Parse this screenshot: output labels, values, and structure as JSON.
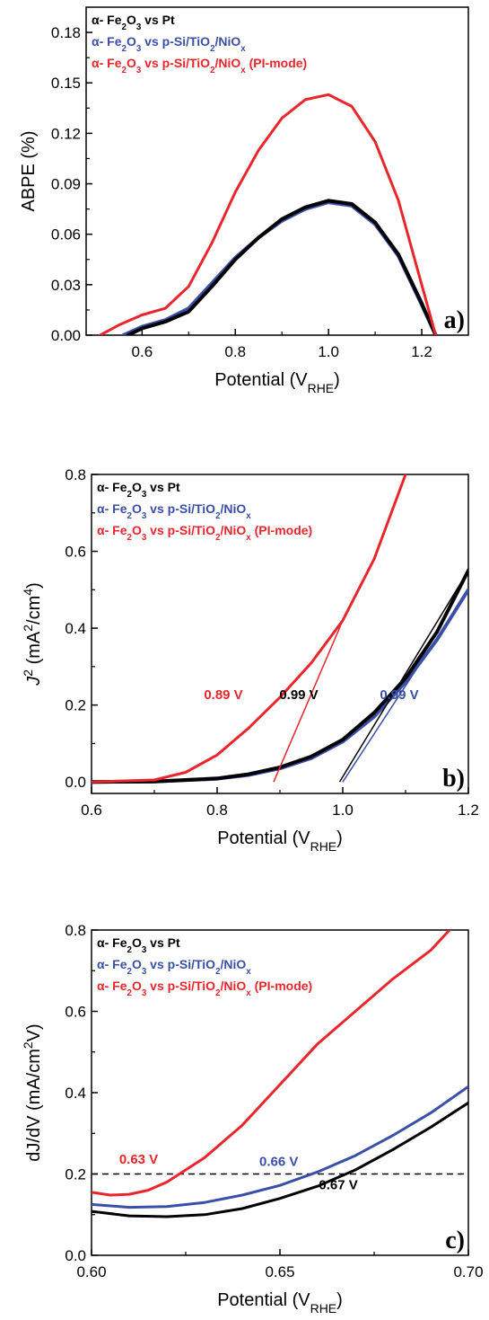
{
  "colors": {
    "black": "#000000",
    "blue": "#3a4fa8",
    "red": "#e8262c"
  },
  "chart_data": [
    {
      "type": "line",
      "panel_label": "a)",
      "xlabel": "Potential (V",
      "xlabel_sub": "RHE",
      "xlabel_close": ")",
      "ylabel": "ABPE (%)",
      "xlim": [
        0.48,
        1.3
      ],
      "ylim": [
        0,
        0.195
      ],
      "xticks": [
        0.6,
        0.8,
        1.0,
        1.2
      ],
      "xtick_labels": [
        "0.6",
        "0.8",
        "1.0",
        "1.2"
      ],
      "yticks": [
        0,
        0.03,
        0.06,
        0.09,
        0.12,
        0.15,
        0.18
      ],
      "ytick_labels": [
        "0.00",
        "0.03",
        "0.06",
        "0.09",
        "0.12",
        "0.15",
        "0.18"
      ],
      "legend": [
        {
          "prefix": "α- Fe",
          "s1": "2",
          "mid": "O",
          "s2": "3",
          "suffix": " vs Pt",
          "color": "#000000"
        },
        {
          "prefix": "α- Fe",
          "s1": "2",
          "mid": "O",
          "s2": "3",
          "suffix": " vs p-Si/TiO",
          "s3": "2",
          "suffix2": "/NiO",
          "s4": "x",
          "color": "#3a4fa8"
        },
        {
          "prefix": "α- Fe",
          "s1": "2",
          "mid": "O",
          "s2": "3",
          "suffix": " vs p-Si/TiO",
          "s3": "2",
          "suffix2": "/NiO",
          "s4": "x",
          "suffix3": " (PI-mode)",
          "color": "#e8262c"
        }
      ],
      "series": [
        {
          "color": "#3a4fa8",
          "width": 4,
          "x": [
            0.56,
            0.6,
            0.65,
            0.7,
            0.75,
            0.8,
            0.85,
            0.9,
            0.95,
            1.0,
            1.05,
            1.1,
            1.15,
            1.2,
            1.23
          ],
          "y": [
            0,
            0.005,
            0.009,
            0.016,
            0.031,
            0.046,
            0.058,
            0.068,
            0.075,
            0.079,
            0.077,
            0.066,
            0.047,
            0.018,
            0
          ]
        },
        {
          "color": "#000000",
          "width": 4,
          "x": [
            0.57,
            0.6,
            0.65,
            0.7,
            0.75,
            0.8,
            0.85,
            0.9,
            0.95,
            1.0,
            1.05,
            1.1,
            1.15,
            1.2,
            1.23
          ],
          "y": [
            0,
            0.004,
            0.008,
            0.014,
            0.029,
            0.045,
            0.058,
            0.069,
            0.076,
            0.08,
            0.078,
            0.067,
            0.048,
            0.019,
            0
          ]
        },
        {
          "color": "#e8262c",
          "width": 3,
          "x": [
            0.51,
            0.55,
            0.6,
            0.65,
            0.7,
            0.75,
            0.8,
            0.85,
            0.9,
            0.95,
            1.0,
            1.05,
            1.1,
            1.15,
            1.2,
            1.23
          ],
          "y": [
            0,
            0.006,
            0.012,
            0.016,
            0.029,
            0.055,
            0.085,
            0.11,
            0.129,
            0.14,
            0.143,
            0.136,
            0.115,
            0.08,
            0.03,
            0
          ]
        }
      ]
    },
    {
      "type": "line",
      "panel_label": "b)",
      "xlabel": "Potential (V",
      "xlabel_sub": "RHE",
      "xlabel_close": ")",
      "ylabel_j": "J",
      "ylabel_exp": "2",
      "ylabel_open": " (mA",
      "ylabel_exp2": "2",
      "ylabel_mid": "/cm",
      "ylabel_exp3": "4",
      "ylabel_close": ")",
      "xlim": [
        0.6,
        1.2
      ],
      "ylim": [
        -0.03,
        0.8
      ],
      "xticks": [
        0.6,
        0.8,
        1.0,
        1.2
      ],
      "xtick_labels": [
        "0.6",
        "0.8",
        "1.0",
        "1.2"
      ],
      "yticks": [
        0,
        0.2,
        0.4,
        0.6,
        0.8
      ],
      "ytick_labels": [
        "0.0",
        "0.2",
        "0.4",
        "0.6",
        "0.8"
      ],
      "legend": [
        {
          "prefix": "α- Fe",
          "s1": "2",
          "mid": "O",
          "s2": "3",
          "suffix": " vs Pt",
          "color": "#000000"
        },
        {
          "prefix": "α- Fe",
          "s1": "2",
          "mid": "O",
          "s2": "3",
          "suffix": " vs p-Si/TiO",
          "s3": "2",
          "suffix2": "/NiO",
          "s4": "x",
          "color": "#3a4fa8"
        },
        {
          "prefix": "α- Fe",
          "s1": "2",
          "mid": "O",
          "s2": "3",
          "suffix": " vs p-Si/TiO",
          "s3": "2",
          "suffix2": "/NiO",
          "s4": "x",
          "suffix3": " (PI-mode)",
          "color": "#e8262c"
        }
      ],
      "annotations": [
        {
          "text": "0.89 V",
          "x": 0.81,
          "y": 0.215,
          "color": "#e8262c"
        },
        {
          "text": "0.99 V",
          "x": 0.93,
          "y": 0.215,
          "color": "#000000"
        },
        {
          "text": "0.99 V",
          "x": 1.09,
          "y": 0.215,
          "color": "#3a4fa8"
        }
      ],
      "fit_lines": [
        {
          "color": "#e8262c",
          "x": [
            0.89,
            1.0
          ],
          "y": [
            0,
            0.42
          ]
        },
        {
          "color": "#000000",
          "x": [
            0.995,
            1.2
          ],
          "y": [
            0,
            0.55
          ]
        },
        {
          "color": "#3a4fa8",
          "x": [
            1.0,
            1.2
          ],
          "y": [
            0,
            0.5
          ]
        }
      ],
      "series": [
        {
          "color": "#3a4fa8",
          "width": 4,
          "x": [
            0.6,
            0.7,
            0.8,
            0.85,
            0.9,
            0.95,
            1.0,
            1.05,
            1.1,
            1.15,
            1.2
          ],
          "y": [
            0,
            0.001,
            0.008,
            0.018,
            0.035,
            0.062,
            0.105,
            0.17,
            0.26,
            0.37,
            0.5
          ]
        },
        {
          "color": "#000000",
          "width": 4,
          "x": [
            0.6,
            0.7,
            0.8,
            0.85,
            0.9,
            0.95,
            1.0,
            1.05,
            1.1,
            1.15,
            1.2
          ],
          "y": [
            0,
            0.001,
            0.009,
            0.02,
            0.038,
            0.066,
            0.11,
            0.18,
            0.27,
            0.39,
            0.55
          ]
        },
        {
          "color": "#e8262c",
          "width": 3,
          "x": [
            0.6,
            0.7,
            0.75,
            0.8,
            0.85,
            0.9,
            0.95,
            1.0,
            1.05,
            1.1
          ],
          "y": [
            0,
            0.005,
            0.025,
            0.07,
            0.14,
            0.22,
            0.31,
            0.42,
            0.58,
            0.8
          ]
        }
      ]
    },
    {
      "type": "line",
      "panel_label": "c)",
      "xlabel": "Potential (V",
      "xlabel_sub": "RHE",
      "xlabel_close": ")",
      "ylabel_pre": "dJ/dV (mA/cm",
      "ylabel_exp": "2",
      "ylabel_post": "V)",
      "xlim": [
        0.6,
        0.7
      ],
      "ylim": [
        0,
        0.8
      ],
      "xticks": [
        0.6,
        0.65,
        0.7
      ],
      "xtick_labels": [
        "0.60",
        "0.65",
        "0.70"
      ],
      "yticks": [
        0,
        0.2,
        0.4,
        0.6,
        0.8
      ],
      "ytick_labels": [
        "0.0",
        "0.2",
        "0.4",
        "0.6",
        "0.8"
      ],
      "legend": [
        {
          "prefix": "α- Fe",
          "s1": "2",
          "mid": "O",
          "s2": "3",
          "suffix": " vs Pt",
          "color": "#000000"
        },
        {
          "prefix": "α- Fe",
          "s1": "2",
          "mid": "O",
          "s2": "3",
          "suffix": " vs p-Si/TiO",
          "s3": "2",
          "suffix2": "/NiO",
          "s4": "x",
          "color": "#3a4fa8"
        },
        {
          "prefix": "α- Fe",
          "s1": "2",
          "mid": "O",
          "s2": "3",
          "suffix": " vs p-Si/TiO",
          "s3": "2",
          "suffix2": "/NiO",
          "s4": "x",
          "suffix3": " (PI-mode)",
          "color": "#e8262c"
        }
      ],
      "hline": 0.2,
      "annotations": [
        {
          "text": "0.63 V",
          "x": 0.6125,
          "y": 0.225,
          "color": "#e8262c"
        },
        {
          "text": "0.66 V",
          "x": 0.6497,
          "y": 0.22,
          "color": "#3a4fa8"
        },
        {
          "text": "0.67 V",
          "x": 0.6655,
          "y": 0.162,
          "color": "#000000"
        }
      ],
      "series": [
        {
          "color": "#000000",
          "width": 3,
          "x": [
            0.6,
            0.61,
            0.62,
            0.63,
            0.64,
            0.65,
            0.66,
            0.67,
            0.68,
            0.69,
            0.7
          ],
          "y": [
            0.108,
            0.097,
            0.095,
            0.1,
            0.115,
            0.14,
            0.17,
            0.21,
            0.26,
            0.315,
            0.375
          ]
        },
        {
          "color": "#3a4fa8",
          "width": 3,
          "x": [
            0.6,
            0.61,
            0.62,
            0.63,
            0.64,
            0.65,
            0.66,
            0.67,
            0.68,
            0.69,
            0.7
          ],
          "y": [
            0.125,
            0.118,
            0.12,
            0.13,
            0.148,
            0.172,
            0.205,
            0.245,
            0.295,
            0.35,
            0.415
          ]
        },
        {
          "color": "#e8262c",
          "width": 3,
          "x": [
            0.6,
            0.605,
            0.61,
            0.615,
            0.62,
            0.63,
            0.64,
            0.65,
            0.66,
            0.67,
            0.68,
            0.69,
            0.695
          ],
          "y": [
            0.155,
            0.148,
            0.15,
            0.16,
            0.18,
            0.24,
            0.32,
            0.42,
            0.52,
            0.6,
            0.68,
            0.75,
            0.8
          ]
        }
      ]
    }
  ]
}
